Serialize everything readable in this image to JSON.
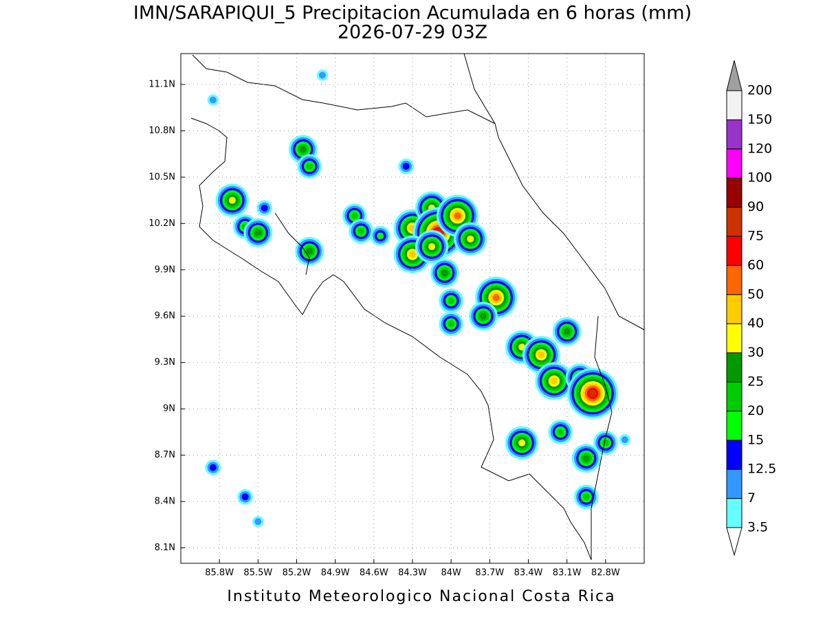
{
  "title": "IMN/SARAPIQUI_5 Precipitacion Acumulada en 6 horas (mm)",
  "subtitle": "2026-07-29 03Z",
  "footer": "Instituto Meteorologico Nacional Costa Rica",
  "map": {
    "lonlim": [
      -86.1,
      -82.5
    ],
    "latlim": [
      8.0,
      11.3
    ],
    "lonticks": [
      {
        "value": -85.8,
        "label": "85.8W"
      },
      {
        "value": -85.5,
        "label": "85.5W"
      },
      {
        "value": -85.2,
        "label": "85.2W"
      },
      {
        "value": -84.9,
        "label": "84.9W"
      },
      {
        "value": -84.6,
        "label": "84.6W"
      },
      {
        "value": -84.3,
        "label": "84.3W"
      },
      {
        "value": -84,
        "label": "84W"
      },
      {
        "value": -83.7,
        "label": "83.7W"
      },
      {
        "value": -83.4,
        "label": "83.4W"
      },
      {
        "value": -83.1,
        "label": "83.1W"
      },
      {
        "value": -82.8,
        "label": "82.8W"
      }
    ],
    "latticks": [
      {
        "value": 8.1,
        "label": "8.1N"
      },
      {
        "value": 8.4,
        "label": "8.4N"
      },
      {
        "value": 8.7,
        "label": "8.7N"
      },
      {
        "value": 9,
        "label": "9N"
      },
      {
        "value": 9.3,
        "label": "9.3N"
      },
      {
        "value": 9.6,
        "label": "9.6N"
      },
      {
        "value": 9.9,
        "label": "9.9N"
      },
      {
        "value": 10.2,
        "label": "10.2N"
      },
      {
        "value": 10.5,
        "label": "10.5N"
      },
      {
        "value": 10.8,
        "label": "10.8N"
      },
      {
        "value": 11.1,
        "label": "11.1N"
      }
    ],
    "grid": true
  },
  "colorbar": {
    "levels": [
      3.5,
      7,
      12.5,
      15,
      20,
      25,
      30,
      40,
      50,
      60,
      75,
      90,
      100,
      120,
      150,
      200
    ],
    "colors": [
      "#ffffff",
      "#66ffff",
      "#3399ff",
      "#0000ff",
      "#00ff00",
      "#00cc00",
      "#009900",
      "#ffff00",
      "#ffcc00",
      "#ff6600",
      "#ff0000",
      "#cc3300",
      "#990000",
      "#ff00ff",
      "#9933cc",
      "#f2f2f2",
      "#a0a0a0"
    ]
  },
  "cells": [
    {
      "lon": -85.7,
      "lat": 10.35,
      "peak": 30
    },
    {
      "lon": -85.6,
      "lat": 10.18,
      "peak": 20
    },
    {
      "lon": -85.5,
      "lat": 10.14,
      "peak": 25
    },
    {
      "lon": -85.45,
      "lat": 10.3,
      "peak": 12.5
    },
    {
      "lon": -85.1,
      "lat": 10.02,
      "peak": 25
    },
    {
      "lon": -85.15,
      "lat": 10.68,
      "peak": 25
    },
    {
      "lon": -85.1,
      "lat": 10.57,
      "peak": 20
    },
    {
      "lon": -84.75,
      "lat": 10.25,
      "peak": 20
    },
    {
      "lon": -84.7,
      "lat": 10.15,
      "peak": 20
    },
    {
      "lon": -84.55,
      "lat": 10.12,
      "peak": 15
    },
    {
      "lon": -84.3,
      "lat": 10.17,
      "peak": 40
    },
    {
      "lon": -84.15,
      "lat": 10.3,
      "peak": 30
    },
    {
      "lon": -84.1,
      "lat": 10.14,
      "peak": 75
    },
    {
      "lon": -83.95,
      "lat": 10.25,
      "peak": 50
    },
    {
      "lon": -84.3,
      "lat": 10.0,
      "peak": 40
    },
    {
      "lon": -84.15,
      "lat": 10.05,
      "peak": 30
    },
    {
      "lon": -84.05,
      "lat": 9.88,
      "peak": 25
    },
    {
      "lon": -83.85,
      "lat": 10.1,
      "peak": 30
    },
    {
      "lon": -84.0,
      "lat": 9.7,
      "peak": 20
    },
    {
      "lon": -83.65,
      "lat": 9.72,
      "peak": 50
    },
    {
      "lon": -83.75,
      "lat": 9.6,
      "peak": 25
    },
    {
      "lon": -83.45,
      "lat": 9.4,
      "peak": 30
    },
    {
      "lon": -83.3,
      "lat": 9.35,
      "peak": 40
    },
    {
      "lon": -83.2,
      "lat": 9.18,
      "peak": 40
    },
    {
      "lon": -83.0,
      "lat": 9.2,
      "peak": 25
    },
    {
      "lon": -82.9,
      "lat": 9.1,
      "peak": 75
    },
    {
      "lon": -83.1,
      "lat": 9.5,
      "peak": 25
    },
    {
      "lon": -83.15,
      "lat": 8.85,
      "peak": 20
    },
    {
      "lon": -83.45,
      "lat": 8.78,
      "peak": 30
    },
    {
      "lon": -82.95,
      "lat": 8.68,
      "peak": 25
    },
    {
      "lon": -82.8,
      "lat": 8.78,
      "peak": 20
    },
    {
      "lon": -82.65,
      "lat": 8.8,
      "peak": 7
    },
    {
      "lon": -82.95,
      "lat": 8.43,
      "peak": 20
    },
    {
      "lon": -85.6,
      "lat": 8.43,
      "peak": 12.5
    },
    {
      "lon": -85.85,
      "lat": 8.62,
      "peak": 12.5
    },
    {
      "lon": -85.5,
      "lat": 8.27,
      "peak": 7
    },
    {
      "lon": -84.0,
      "lat": 9.55,
      "peak": 20
    },
    {
      "lon": -84.35,
      "lat": 10.57,
      "peak": 12.5
    },
    {
      "lon": -85.0,
      "lat": 11.16,
      "peak": 7
    },
    {
      "lon": -85.85,
      "lat": 11.0,
      "peak": 7
    }
  ]
}
